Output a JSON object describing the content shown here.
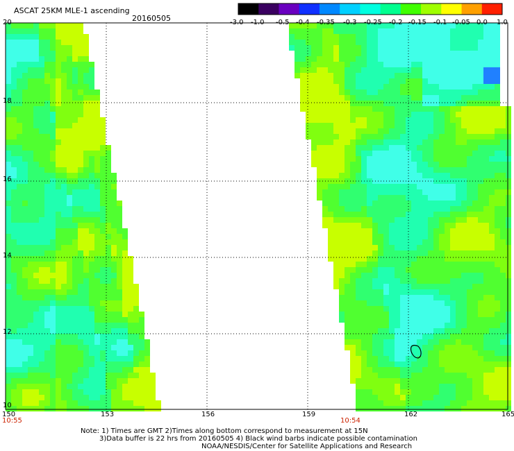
{
  "header": {
    "product": "ASCAT 25KM MLE-1 ascending",
    "date": "20160505"
  },
  "colorbar": {
    "labels": [
      "-3.0",
      "-1.0",
      "-0.5",
      "-0.4",
      "-0.35",
      "-0.3",
      "-0.25",
      "-0.2",
      "-0.15",
      "-0.1",
      "-0.05",
      "0.0",
      "1.0"
    ],
    "colors": [
      "#000000",
      "#3a0060",
      "#6a00c0",
      "#1030ff",
      "#0088ff",
      "#00d0ff",
      "#00ffe0",
      "#00ff90",
      "#40ff00",
      "#a0ff00",
      "#ffff00",
      "#ffa000",
      "#ff2000"
    ]
  },
  "map": {
    "lon_ticks": [
      "150",
      "153",
      "156",
      "159",
      "162",
      "165"
    ],
    "lat_ticks": [
      "20",
      "18",
      "16",
      "14",
      "12",
      "10"
    ],
    "lon_range": [
      150,
      165
    ],
    "lat_range": [
      10,
      20
    ],
    "pass_times": [
      "10:55",
      "10:54"
    ],
    "grid": true
  },
  "notes": {
    "line1": "Note: 1) Times are GMT 2)Times along bottom correspond to measurement at 15N",
    "line2": "3)Data buffer is 22 hrs from 20160505 4) Black wind barbs indicate possible contamination",
    "line3": "NOAA/NESDIS/Center for Satellite Applications and Research"
  }
}
